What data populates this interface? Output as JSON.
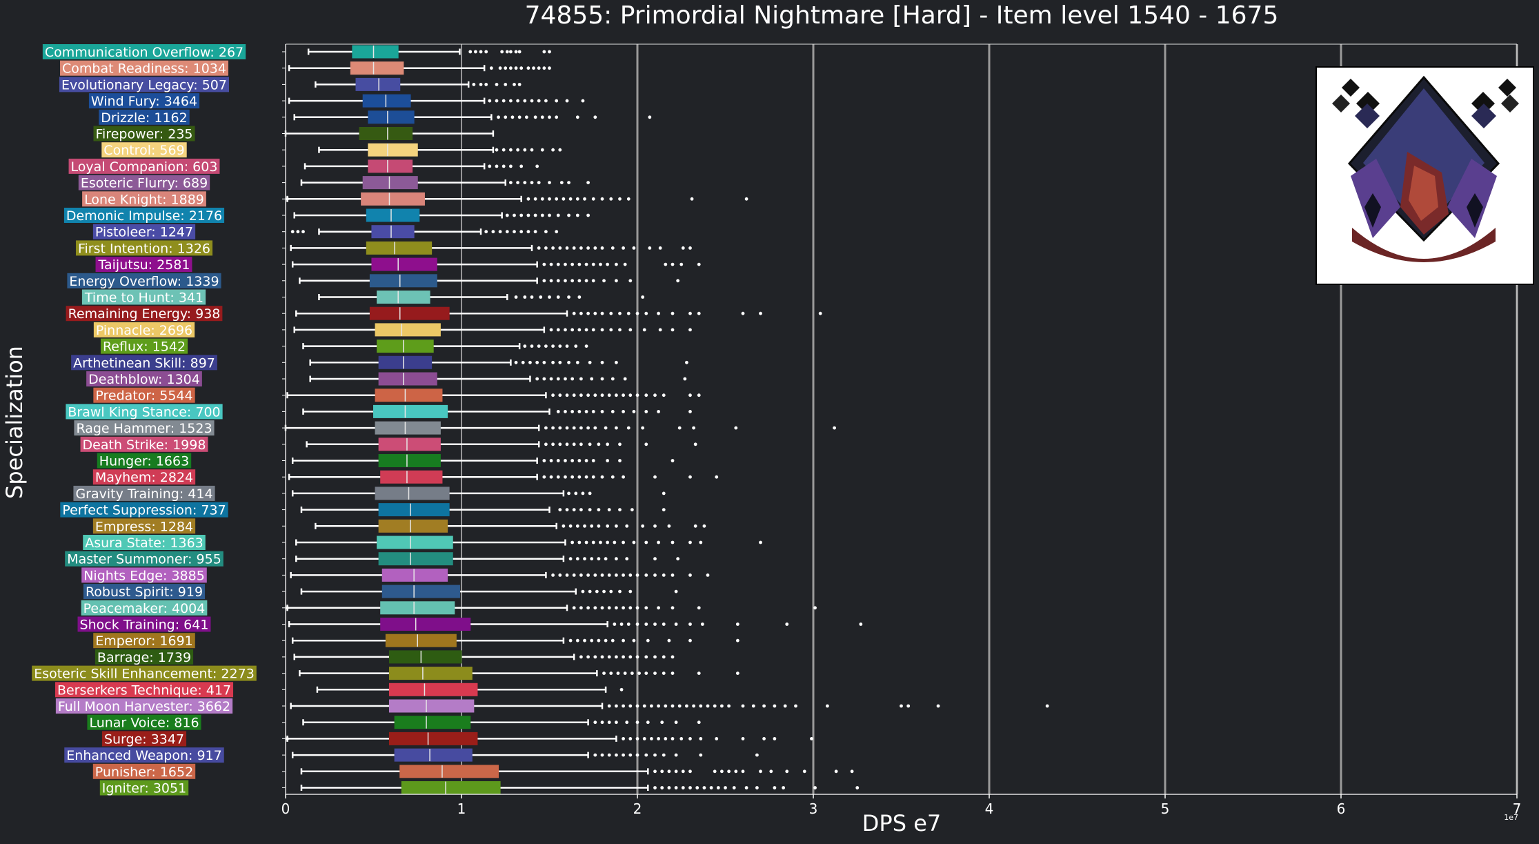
{
  "chart_data": {
    "type": "box",
    "orientation": "horizontal",
    "title": "74855: Primordial Nightmare [Hard] - Item level 1540 - 1675",
    "xlabel": "DPS e7",
    "ylabel": "Specialization",
    "xlim": [
      0,
      7
    ],
    "xticks": [
      0,
      1,
      2,
      3,
      4,
      5,
      6,
      7
    ],
    "x_scale_label": "1e7",
    "grid": "vertical lines at x = 2, 3, 4, 5, 6, 7",
    "image_inset": "boss portrait, top-right",
    "categories": [
      {
        "label": "Communication Overflow: 267",
        "color": "#1aa699",
        "q1": 0.38,
        "median": 0.5,
        "q3": 0.64,
        "wlo": 0.13,
        "whi": 0.99,
        "outliers": [
          1.05,
          1.08,
          1.11,
          1.14,
          1.23,
          1.26,
          1.28,
          1.31,
          1.33,
          1.47,
          1.5
        ]
      },
      {
        "label": "Combat Readiness: 1034",
        "color": "#dd8a76",
        "q1": 0.37,
        "median": 0.5,
        "q3": 0.67,
        "wlo": 0.02,
        "whi": 1.13,
        "outliers": [
          1.17,
          1.22,
          1.25,
          1.28,
          1.31,
          1.34,
          1.38,
          1.41,
          1.44,
          1.47,
          1.5
        ]
      },
      {
        "label": "Evolutionary Legacy: 507",
        "color": "#474da1",
        "q1": 0.4,
        "median": 0.53,
        "q3": 0.65,
        "wlo": 0.17,
        "whi": 1.04,
        "outliers": [
          1.07,
          1.11,
          1.14,
          1.2,
          1.25,
          1.3,
          1.33
        ]
      },
      {
        "label": "Wind Fury: 3464",
        "color": "#1c4e9a",
        "q1": 0.44,
        "median": 0.57,
        "q3": 0.71,
        "wlo": 0.02,
        "whi": 1.13,
        "outliers": [
          1.16,
          1.2,
          1.24,
          1.28,
          1.32,
          1.36,
          1.4,
          1.44,
          1.48,
          1.54,
          1.6,
          1.69
        ]
      },
      {
        "label": "Drizzle: 1162",
        "color": "#1d4e97",
        "q1": 0.47,
        "median": 0.58,
        "q3": 0.73,
        "wlo": 0.05,
        "whi": 1.17,
        "outliers": [
          1.21,
          1.25,
          1.29,
          1.33,
          1.37,
          1.42,
          1.46,
          1.5,
          1.54,
          1.66,
          1.76,
          2.07
        ]
      },
      {
        "label": "Firepower: 235",
        "color": "#365a12",
        "q1": 0.42,
        "median": 0.58,
        "q3": 0.72,
        "wlo": 0.0,
        "whi": 1.18,
        "outliers": []
      },
      {
        "label": "Control: 569",
        "color": "#f4d37e",
        "q1": 0.47,
        "median": 0.58,
        "q3": 0.75,
        "wlo": 0.19,
        "whi": 1.18,
        "outliers": [
          1.2,
          1.24,
          1.28,
          1.32,
          1.36,
          1.4,
          1.46,
          1.52,
          1.56
        ]
      },
      {
        "label": "Loyal Companion: 603",
        "color": "#c54a74",
        "q1": 0.47,
        "median": 0.58,
        "q3": 0.72,
        "wlo": 0.11,
        "whi": 1.13,
        "outliers": [
          1.16,
          1.2,
          1.24,
          1.28,
          1.34,
          1.43
        ]
      },
      {
        "label": "Esoteric Flurry: 689",
        "color": "#8c5a97",
        "q1": 0.44,
        "median": 0.59,
        "q3": 0.75,
        "wlo": 0.09,
        "whi": 1.25,
        "outliers": [
          1.28,
          1.32,
          1.36,
          1.4,
          1.44,
          1.5,
          1.57,
          1.61,
          1.72
        ]
      },
      {
        "label": "Lone Knight: 1889",
        "color": "#d9857a",
        "q1": 0.43,
        "median": 0.59,
        "q3": 0.79,
        "wlo": 0.01,
        "whi": 1.34,
        "outliers": [
          0.01,
          1.38,
          1.42,
          1.46,
          1.5,
          1.54,
          1.58,
          1.62,
          1.66,
          1.7,
          1.75,
          1.8,
          1.85,
          1.9,
          1.95,
          2.31,
          2.62
        ]
      },
      {
        "label": "Demonic Impulse: 2176",
        "color": "#1183ad",
        "q1": 0.46,
        "median": 0.6,
        "q3": 0.76,
        "wlo": 0.05,
        "whi": 1.23,
        "outliers": [
          1.26,
          1.3,
          1.34,
          1.38,
          1.42,
          1.46,
          1.5,
          1.55,
          1.61,
          1.66,
          1.72
        ]
      },
      {
        "label": "Pistoleer: 1247",
        "color": "#4a4ca6",
        "q1": 0.49,
        "median": 0.6,
        "q3": 0.73,
        "wlo": 0.19,
        "whi": 1.11,
        "outliers": [
          0.04,
          0.07,
          0.1,
          1.14,
          1.18,
          1.22,
          1.26,
          1.3,
          1.34,
          1.38,
          1.42,
          1.48,
          1.54
        ]
      },
      {
        "label": "First Intention: 1326",
        "color": "#8f8e1d",
        "q1": 0.46,
        "median": 0.62,
        "q3": 0.83,
        "wlo": 0.03,
        "whi": 1.4,
        "outliers": [
          1.44,
          1.48,
          1.52,
          1.56,
          1.6,
          1.64,
          1.68,
          1.72,
          1.76,
          1.8,
          1.86,
          1.92,
          1.98,
          2.07,
          2.13,
          2.26,
          2.3
        ]
      },
      {
        "label": "Taijutsu: 2581",
        "color": "#8e0f8d",
        "q1": 0.49,
        "median": 0.64,
        "q3": 0.86,
        "wlo": 0.04,
        "whi": 1.43,
        "outliers": [
          1.47,
          1.51,
          1.55,
          1.59,
          1.63,
          1.67,
          1.71,
          1.75,
          1.79,
          1.83,
          1.88,
          1.93,
          2.16,
          2.2,
          2.25,
          2.35
        ]
      },
      {
        "label": "Energy Overflow: 1339",
        "color": "#2c5a8c",
        "q1": 0.48,
        "median": 0.65,
        "q3": 0.86,
        "wlo": 0.08,
        "whi": 1.43,
        "outliers": [
          1.47,
          1.51,
          1.55,
          1.59,
          1.63,
          1.67,
          1.71,
          1.75,
          1.81,
          1.88,
          1.96,
          2.23
        ]
      },
      {
        "label": "Time to Hunt: 341",
        "color": "#6dc2b5",
        "q1": 0.52,
        "median": 0.64,
        "q3": 0.82,
        "wlo": 0.19,
        "whi": 1.26,
        "outliers": [
          1.31,
          1.36,
          1.4,
          1.45,
          1.5,
          1.55,
          1.61,
          1.67,
          2.03
        ]
      },
      {
        "label": "Remaining Energy: 938",
        "color": "#961b1d",
        "q1": 0.48,
        "median": 0.65,
        "q3": 0.93,
        "wlo": 0.06,
        "whi": 1.6,
        "outliers": [
          1.64,
          1.68,
          1.72,
          1.76,
          1.8,
          1.85,
          1.9,
          1.95,
          2.0,
          2.05,
          2.12,
          2.2,
          2.3,
          2.35,
          2.6,
          2.7,
          3.04
        ]
      },
      {
        "label": "Pinnacle: 2696",
        "color": "#ecc866",
        "q1": 0.51,
        "median": 0.66,
        "q3": 0.88,
        "wlo": 0.05,
        "whi": 1.47,
        "outliers": [
          1.51,
          1.55,
          1.59,
          1.63,
          1.67,
          1.71,
          1.75,
          1.8,
          1.85,
          1.9,
          1.96,
          2.04,
          2.13,
          2.2,
          2.3
        ]
      },
      {
        "label": "Reflux: 1542",
        "color": "#5e9d1b",
        "q1": 0.52,
        "median": 0.67,
        "q3": 0.84,
        "wlo": 0.1,
        "whi": 1.33,
        "outliers": [
          1.36,
          1.4,
          1.44,
          1.48,
          1.52,
          1.56,
          1.6,
          1.65,
          1.71
        ]
      },
      {
        "label": "Arthetinean Skill: 897",
        "color": "#3b3e8d",
        "q1": 0.53,
        "median": 0.67,
        "q3": 0.83,
        "wlo": 0.14,
        "whi": 1.28,
        "outliers": [
          1.31,
          1.35,
          1.39,
          1.43,
          1.47,
          1.52,
          1.56,
          1.61,
          1.66,
          1.73,
          1.8,
          1.88,
          2.28
        ]
      },
      {
        "label": "Deathblow: 1304",
        "color": "#8c4d93",
        "q1": 0.53,
        "median": 0.67,
        "q3": 0.86,
        "wlo": 0.14,
        "whi": 1.39,
        "outliers": [
          1.43,
          1.47,
          1.51,
          1.55,
          1.59,
          1.63,
          1.68,
          1.74,
          1.8,
          1.86,
          1.93,
          2.27
        ]
      },
      {
        "label": "Predator: 5544",
        "color": "#cd6446",
        "q1": 0.51,
        "median": 0.68,
        "q3": 0.89,
        "wlo": 0.01,
        "whi": 1.48,
        "outliers": [
          1.52,
          1.56,
          1.6,
          1.64,
          1.68,
          1.72,
          1.76,
          1.8,
          1.84,
          1.88,
          1.92,
          1.96,
          2.0,
          2.05,
          2.1,
          2.15,
          2.3,
          2.35
        ]
      },
      {
        "label": "Brawl King Stance: 700",
        "color": "#49c7c1",
        "q1": 0.5,
        "median": 0.68,
        "q3": 0.92,
        "wlo": 0.1,
        "whi": 1.5,
        "outliers": [
          1.55,
          1.59,
          1.63,
          1.67,
          1.71,
          1.75,
          1.8,
          1.86,
          1.92,
          1.98,
          2.05,
          2.12,
          2.3
        ]
      },
      {
        "label": "Rage Hammer: 1523",
        "color": "#828a92",
        "q1": 0.51,
        "median": 0.68,
        "q3": 0.88,
        "wlo": 0.0,
        "whi": 1.44,
        "outliers": [
          1.48,
          1.52,
          1.56,
          1.6,
          1.64,
          1.68,
          1.72,
          1.76,
          1.82,
          1.88,
          1.95,
          2.03,
          2.24,
          2.32,
          2.56,
          3.12
        ]
      },
      {
        "label": "Death Strike: 1998",
        "color": "#cc4d76",
        "q1": 0.53,
        "median": 0.69,
        "q3": 0.88,
        "wlo": 0.12,
        "whi": 1.44,
        "outliers": [
          1.48,
          1.52,
          1.56,
          1.6,
          1.64,
          1.68,
          1.73,
          1.78,
          1.83,
          1.9,
          2.05,
          2.33
        ]
      },
      {
        "label": "Hunger: 1663",
        "color": "#177c20",
        "q1": 0.53,
        "median": 0.69,
        "q3": 0.88,
        "wlo": 0.04,
        "whi": 1.43,
        "outliers": [
          1.47,
          1.51,
          1.55,
          1.59,
          1.63,
          1.67,
          1.71,
          1.75,
          1.83,
          1.9,
          2.2
        ]
      },
      {
        "label": "Mayhem: 2824",
        "color": "#d03c55",
        "q1": 0.54,
        "median": 0.69,
        "q3": 0.89,
        "wlo": 0.02,
        "whi": 1.43,
        "outliers": [
          1.47,
          1.51,
          1.55,
          1.59,
          1.63,
          1.67,
          1.71,
          1.75,
          1.8,
          1.86,
          1.92,
          2.1,
          2.3,
          2.45
        ]
      },
      {
        "label": "Gravity Training: 414",
        "color": "#767d88",
        "q1": 0.51,
        "median": 0.7,
        "q3": 0.93,
        "wlo": 0.04,
        "whi": 1.58,
        "outliers": [
          1.61,
          1.65,
          1.69,
          1.73,
          2.15
        ]
      },
      {
        "label": "Perfect Suppression: 737",
        "color": "#0e74a0",
        "q1": 0.53,
        "median": 0.71,
        "q3": 0.93,
        "wlo": 0.09,
        "whi": 1.5,
        "outliers": [
          1.56,
          1.6,
          1.64,
          1.68,
          1.73,
          1.78,
          1.84,
          1.9,
          1.97,
          2.15
        ]
      },
      {
        "label": "Empress: 1284",
        "color": "#a17d23",
        "q1": 0.53,
        "median": 0.71,
        "q3": 0.92,
        "wlo": 0.17,
        "whi": 1.54,
        "outliers": [
          1.58,
          1.62,
          1.66,
          1.7,
          1.74,
          1.78,
          1.83,
          1.88,
          1.94,
          2.03,
          2.1,
          2.18,
          2.33,
          2.38
        ]
      },
      {
        "label": "Asura State: 1363",
        "color": "#50c8b5",
        "q1": 0.52,
        "median": 0.71,
        "q3": 0.95,
        "wlo": 0.06,
        "whi": 1.59,
        "outliers": [
          1.63,
          1.67,
          1.71,
          1.75,
          1.79,
          1.83,
          1.87,
          1.92,
          1.98,
          2.05,
          2.12,
          2.2,
          2.3,
          2.36,
          2.7
        ]
      },
      {
        "label": "Master Summoner: 955",
        "color": "#238d80",
        "q1": 0.53,
        "median": 0.71,
        "q3": 0.95,
        "wlo": 0.06,
        "whi": 1.58,
        "outliers": [
          1.62,
          1.66,
          1.7,
          1.74,
          1.78,
          1.82,
          1.88,
          1.94,
          2.1,
          2.23
        ]
      },
      {
        "label": "Nights Edge: 3885",
        "color": "#b261bf",
        "q1": 0.55,
        "median": 0.73,
        "q3": 0.92,
        "wlo": 0.03,
        "whi": 1.48,
        "outliers": [
          1.52,
          1.56,
          1.6,
          1.64,
          1.68,
          1.72,
          1.76,
          1.8,
          1.84,
          1.88,
          1.92,
          1.96,
          2.0,
          2.05,
          2.1,
          2.15,
          2.2,
          2.3,
          2.4
        ]
      },
      {
        "label": "Robust Spirit: 919",
        "color": "#2e5a8e",
        "q1": 0.55,
        "median": 0.73,
        "q3": 0.99,
        "wlo": 0.09,
        "whi": 1.65,
        "outliers": [
          1.69,
          1.73,
          1.77,
          1.81,
          1.85,
          1.9,
          1.96,
          2.22
        ]
      },
      {
        "label": "Peacemaker: 4004",
        "color": "#64c1b1",
        "q1": 0.54,
        "median": 0.73,
        "q3": 0.96,
        "wlo": 0.01,
        "whi": 1.6,
        "outliers": [
          0.01,
          1.64,
          1.68,
          1.72,
          1.76,
          1.8,
          1.84,
          1.88,
          1.92,
          1.96,
          2.0,
          2.05,
          2.12,
          2.2,
          2.35,
          3.01
        ]
      },
      {
        "label": "Shock Training: 641",
        "color": "#7f0f8a",
        "q1": 0.54,
        "median": 0.74,
        "q3": 1.05,
        "wlo": 0.02,
        "whi": 1.83,
        "outliers": [
          1.87,
          1.91,
          1.95,
          2.0,
          2.05,
          2.1,
          2.15,
          2.22,
          2.3,
          2.37,
          2.57,
          2.85,
          3.27
        ]
      },
      {
        "label": "Emperor: 1691",
        "color": "#a0761e",
        "q1": 0.57,
        "median": 0.75,
        "q3": 0.97,
        "wlo": 0.04,
        "whi": 1.58,
        "outliers": [
          1.62,
          1.66,
          1.7,
          1.74,
          1.78,
          1.82,
          1.86,
          1.92,
          1.98,
          2.06,
          2.18,
          2.3,
          2.57
        ]
      },
      {
        "label": "Barrage: 1739",
        "color": "#2e5c12",
        "q1": 0.59,
        "median": 0.77,
        "q3": 1.0,
        "wlo": 0.05,
        "whi": 1.64,
        "outliers": [
          1.68,
          1.72,
          1.76,
          1.8,
          1.84,
          1.88,
          1.92,
          1.96,
          2.0,
          2.05,
          2.1,
          2.15,
          2.2
        ]
      },
      {
        "label": "Esoteric Skill Enhancement: 2273",
        "color": "#8c8c1c",
        "q1": 0.59,
        "median": 0.78,
        "q3": 1.06,
        "wlo": 0.08,
        "whi": 1.77,
        "outliers": [
          1.81,
          1.85,
          1.89,
          1.93,
          1.97,
          2.01,
          2.05,
          2.1,
          2.15,
          2.2,
          2.35,
          2.57
        ]
      },
      {
        "label": "Berserkers Technique: 417",
        "color": "#d83a50",
        "q1": 0.59,
        "median": 0.79,
        "q3": 1.09,
        "wlo": 0.18,
        "whi": 1.82,
        "outliers": [
          1.91
        ]
      },
      {
        "label": "Full Moon Harvester: 3662",
        "color": "#b47cc7",
        "q1": 0.59,
        "median": 0.8,
        "q3": 1.07,
        "wlo": 0.03,
        "whi": 1.8,
        "outliers": [
          1.84,
          1.88,
          1.92,
          1.96,
          2.0,
          2.04,
          2.08,
          2.12,
          2.16,
          2.2,
          2.24,
          2.28,
          2.32,
          2.36,
          2.4,
          2.44,
          2.48,
          2.52,
          2.6,
          2.66,
          2.72,
          2.78,
          2.84,
          2.9,
          3.08,
          3.5,
          3.54,
          3.71,
          4.33
        ]
      },
      {
        "label": "Lunar Voice: 816",
        "color": "#1a7d1d",
        "q1": 0.62,
        "median": 0.8,
        "q3": 1.05,
        "wlo": 0.1,
        "whi": 1.72,
        "outliers": [
          1.76,
          1.8,
          1.84,
          1.88,
          1.94,
          2.0,
          2.06,
          2.14,
          2.22,
          2.35
        ]
      },
      {
        "label": "Surge: 3347",
        "color": "#9a1e19",
        "q1": 0.59,
        "median": 0.81,
        "q3": 1.09,
        "wlo": 0.01,
        "whi": 1.88,
        "outliers": [
          0.01,
          1.92,
          1.96,
          2.0,
          2.04,
          2.08,
          2.12,
          2.16,
          2.2,
          2.25,
          2.3,
          2.36,
          2.45,
          2.6,
          2.72,
          2.78,
          2.99
        ]
      },
      {
        "label": "Enhanced Weapon: 917",
        "color": "#474ba0",
        "q1": 0.62,
        "median": 0.82,
        "q3": 1.06,
        "wlo": 0.04,
        "whi": 1.72,
        "outliers": [
          1.76,
          1.8,
          1.84,
          1.88,
          1.92,
          1.96,
          2.0,
          2.05,
          2.1,
          2.15,
          2.22,
          2.36,
          2.68
        ]
      },
      {
        "label": "Punisher: 1652",
        "color": "#cb6749",
        "q1": 0.65,
        "median": 0.89,
        "q3": 1.21,
        "wlo": 0.09,
        "whi": 2.06,
        "outliers": [
          2.1,
          2.14,
          2.18,
          2.22,
          2.26,
          2.3,
          2.44,
          2.48,
          2.52,
          2.56,
          2.6,
          2.7,
          2.76,
          2.85,
          2.95,
          3.13,
          3.22
        ]
      },
      {
        "label": "Igniter: 3051",
        "color": "#5d991c",
        "q1": 0.66,
        "median": 0.91,
        "q3": 1.22,
        "wlo": 0.09,
        "whi": 2.06,
        "outliers": [
          2.1,
          2.14,
          2.18,
          2.22,
          2.26,
          2.3,
          2.34,
          2.38,
          2.42,
          2.46,
          2.5,
          2.55,
          2.62,
          2.68,
          2.78,
          2.83,
          3.01,
          3.25
        ]
      }
    ]
  }
}
